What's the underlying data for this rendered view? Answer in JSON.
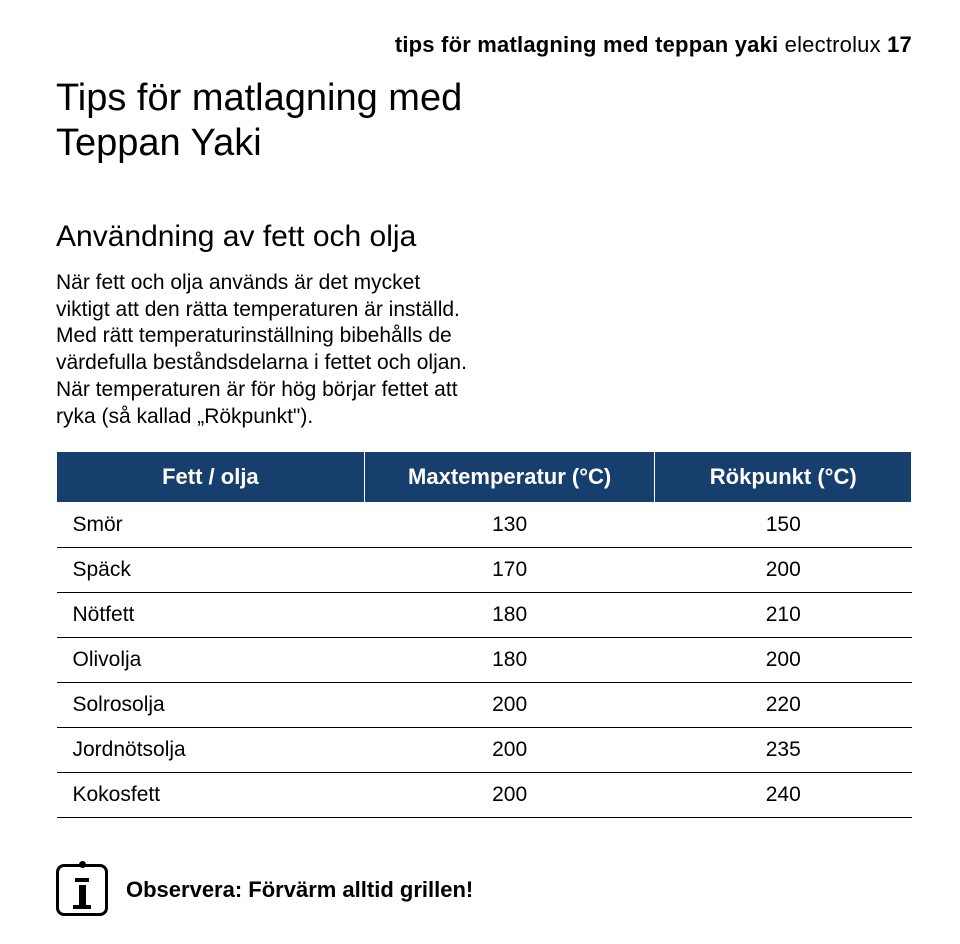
{
  "header": {
    "part1": "tips för matlagning med",
    "part2": "teppan yaki",
    "part3": "electrolux",
    "part4": "17"
  },
  "title": "Tips för matlagning med Teppan Yaki",
  "subtitle": "Användning av fett och olja",
  "body": "När fett och olja används är det mycket viktigt att den rätta temperaturen är inställd. Med rätt temperaturinställning bibehålls de värdefulla beståndsdelarna i fettet och oljan. När temperaturen är för hög börjar fettet att ryka (så kallad „Rökpunkt\").",
  "table": {
    "columns": [
      "Fett / olja",
      "Maxtemperatur (°C)",
      "Rökpunkt (°C)"
    ],
    "rows": [
      [
        "Smör",
        "130",
        "150"
      ],
      [
        "Späck",
        "170",
        "200"
      ],
      [
        "Nötfett",
        "180",
        "210"
      ],
      [
        "Olivolja",
        "180",
        "200"
      ],
      [
        "Solrosolja",
        "200",
        "220"
      ],
      [
        "Jordnötsolja",
        "200",
        "235"
      ],
      [
        "Kokosfett",
        "200",
        "240"
      ]
    ],
    "header_bg": "#173f6e",
    "header_fg": "#ffffff",
    "border_color": "#000000",
    "header_fontsize": 22,
    "cell_fontsize": 21
  },
  "note": "Observera: Förvärm alltid grillen!",
  "colors": {
    "background": "#ffffff",
    "text": "#000000"
  }
}
